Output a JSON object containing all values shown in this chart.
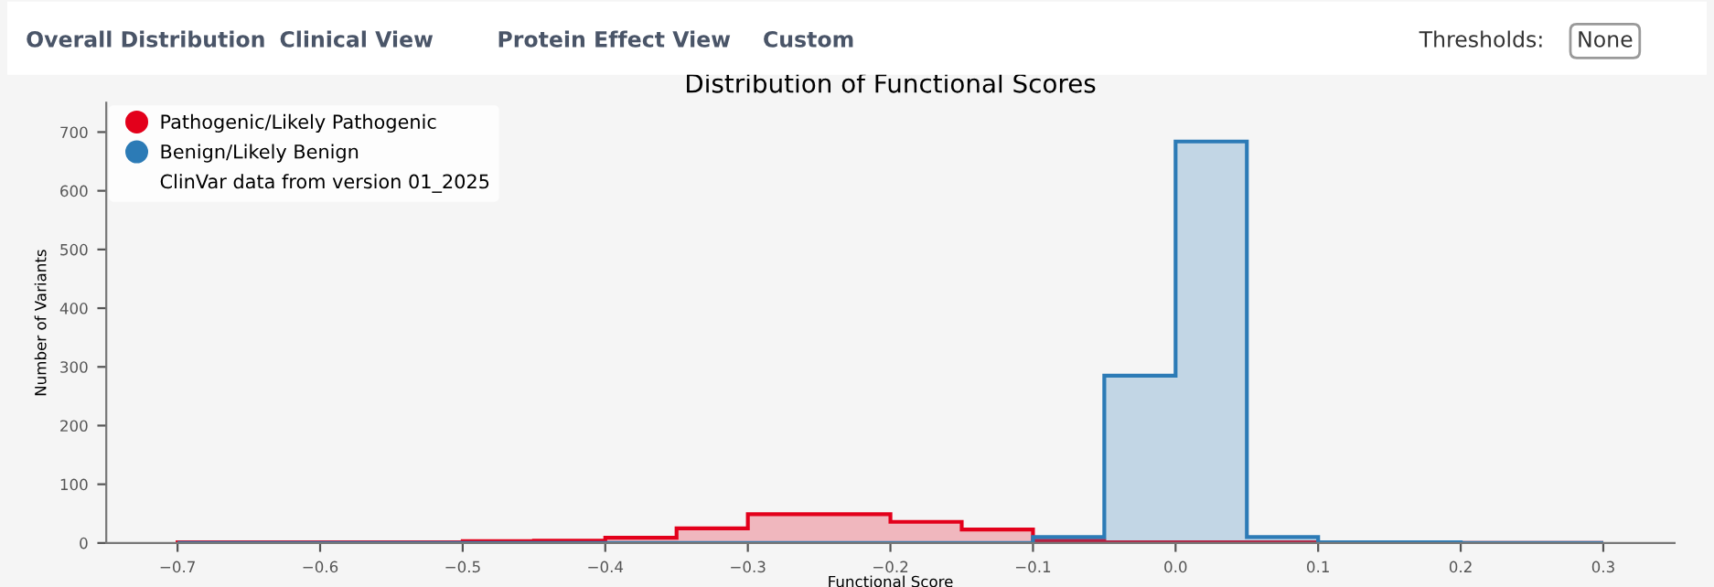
{
  "chart_data": {
    "type": "histogram",
    "title": "Distribution of Functional Scores",
    "xlabel": "Functional Score",
    "ylabel": "Number of Variants",
    "bins": [
      -0.7,
      -0.65,
      -0.6,
      -0.55,
      -0.5,
      -0.45,
      -0.4,
      -0.35,
      -0.3,
      -0.25,
      -0.2,
      -0.15,
      -0.1,
      -0.05,
      0.0,
      0.05,
      0.1,
      0.15,
      0.2,
      0.25,
      0.3
    ],
    "series": [
      {
        "name": "Pathogenic/Likely Pathogenic",
        "color": "#e3001b",
        "values": [
          1,
          1,
          1,
          1,
          3,
          4,
          9,
          25,
          49,
          49,
          36,
          23,
          4,
          1,
          1,
          1,
          0,
          0,
          0,
          0
        ]
      },
      {
        "name": "Benign/Likely Benign",
        "color": "#2c7bb6",
        "values": [
          0,
          0,
          0,
          0,
          0,
          0,
          0,
          0,
          0,
          0,
          0,
          0,
          10,
          285,
          684,
          10,
          1,
          1,
          0,
          0
        ]
      }
    ],
    "xlim": [
      -0.75,
      0.35
    ],
    "xticks": [
      {
        "value": -0.7,
        "label": "−0.7"
      },
      {
        "value": -0.6,
        "label": "−0.6"
      },
      {
        "value": -0.5,
        "label": "−0.5"
      },
      {
        "value": -0.4,
        "label": "−0.4"
      },
      {
        "value": -0.3,
        "label": "−0.3"
      },
      {
        "value": -0.2,
        "label": "−0.2"
      },
      {
        "value": -0.1,
        "label": "−0.1"
      },
      {
        "value": 0.0,
        "label": "0.0"
      },
      {
        "value": 0.1,
        "label": "0.1"
      },
      {
        "value": 0.2,
        "label": "0.2"
      },
      {
        "value": 0.3,
        "label": "0.3"
      }
    ],
    "ylim": [
      0,
      750
    ],
    "yticks": [
      0,
      100,
      200,
      300,
      400,
      500,
      600,
      700
    ],
    "grid": false,
    "legend": "top left",
    "marker": "circle",
    "annotations": [
      "ClinVar data from version 01_2025",
      "Overall Distribution",
      "Clinical View",
      "Protein Effect View",
      "Custom",
      "Thresholds:",
      "None"
    ]
  }
}
